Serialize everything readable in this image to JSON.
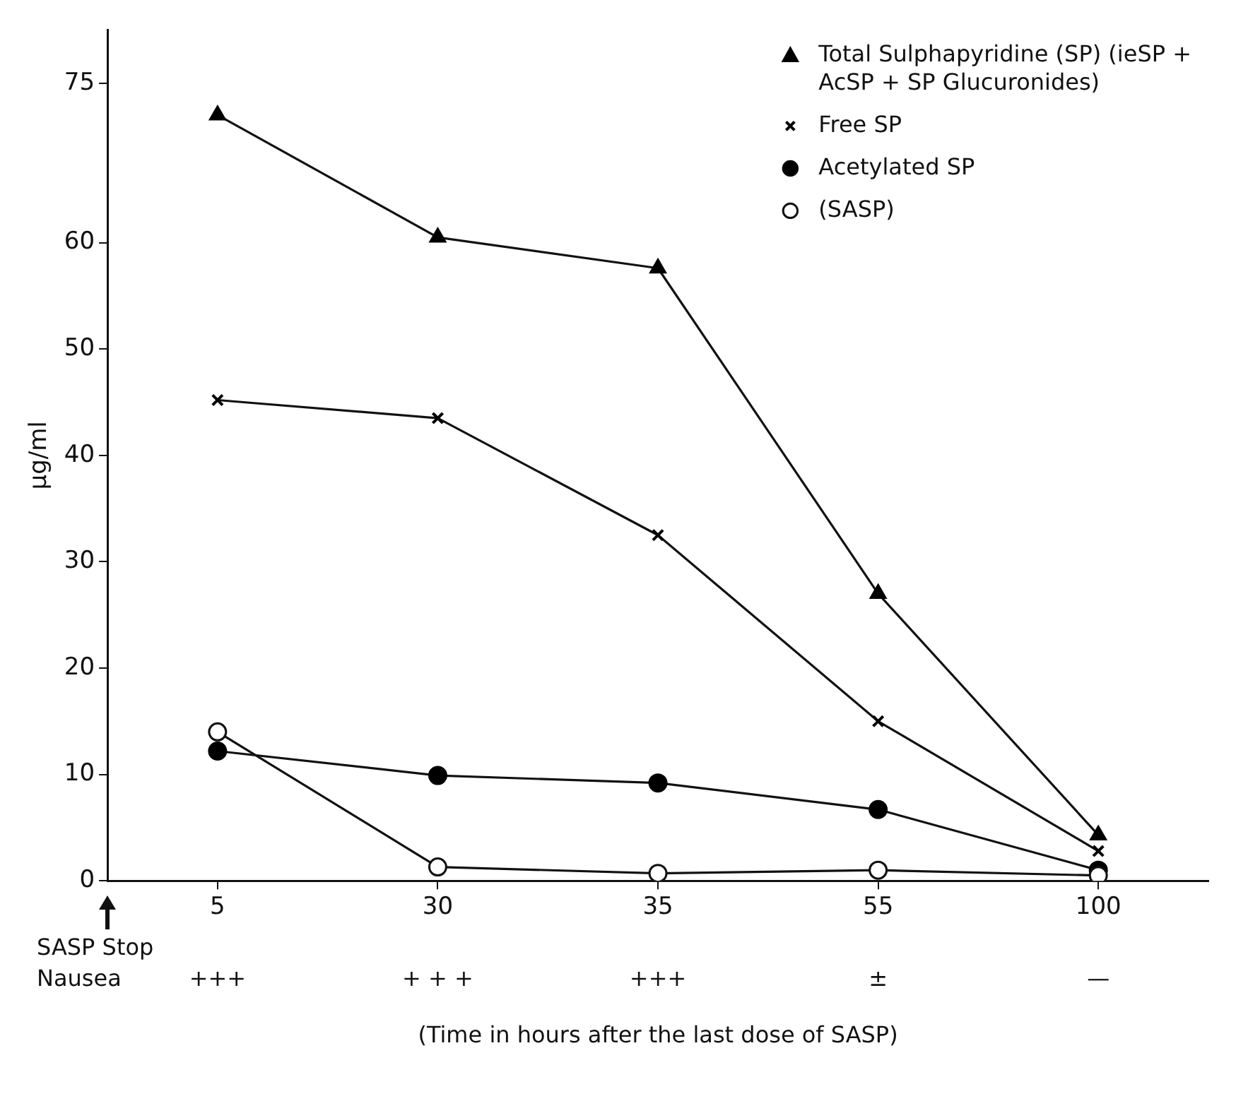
{
  "chart_data": {
    "type": "line",
    "xlabel": "(Time in hours after the last dose of SASP)",
    "ylabel": "µg/ml",
    "categories": [
      "5",
      "30",
      "35",
      "55",
      "100"
    ],
    "ylim": [
      0,
      80
    ],
    "yticks": [
      0,
      10,
      20,
      30,
      40,
      50,
      60,
      75
    ],
    "grid": false,
    "legend": "top right",
    "line_style": "solid",
    "series": [
      {
        "name": "Total Sulphapyridine (SP) (ieSP + AcSP + SP Glucuronides)",
        "color": "#000000",
        "marker": "triangle",
        "values": [
          72,
          60.5,
          57.6,
          27,
          4.3
        ]
      },
      {
        "name": "Free SP",
        "color": "#000000",
        "marker": "cross",
        "values": [
          45.2,
          43.5,
          32.5,
          15,
          2.8
        ]
      },
      {
        "name": "Acetylated SP",
        "color": "#000000",
        "marker": "circle",
        "values": [
          12.2,
          9.9,
          9.2,
          6.7,
          1.0
        ]
      },
      {
        "name": "(SASP)",
        "color": "#ffffff",
        "marker": "circle",
        "values": [
          14,
          1.3,
          0.7,
          1.0,
          0.5
        ]
      }
    ],
    "annotations": [
      "SASP Stop",
      "Nausea",
      "+++",
      "+ + +",
      "+++",
      "±",
      "—"
    ]
  }
}
